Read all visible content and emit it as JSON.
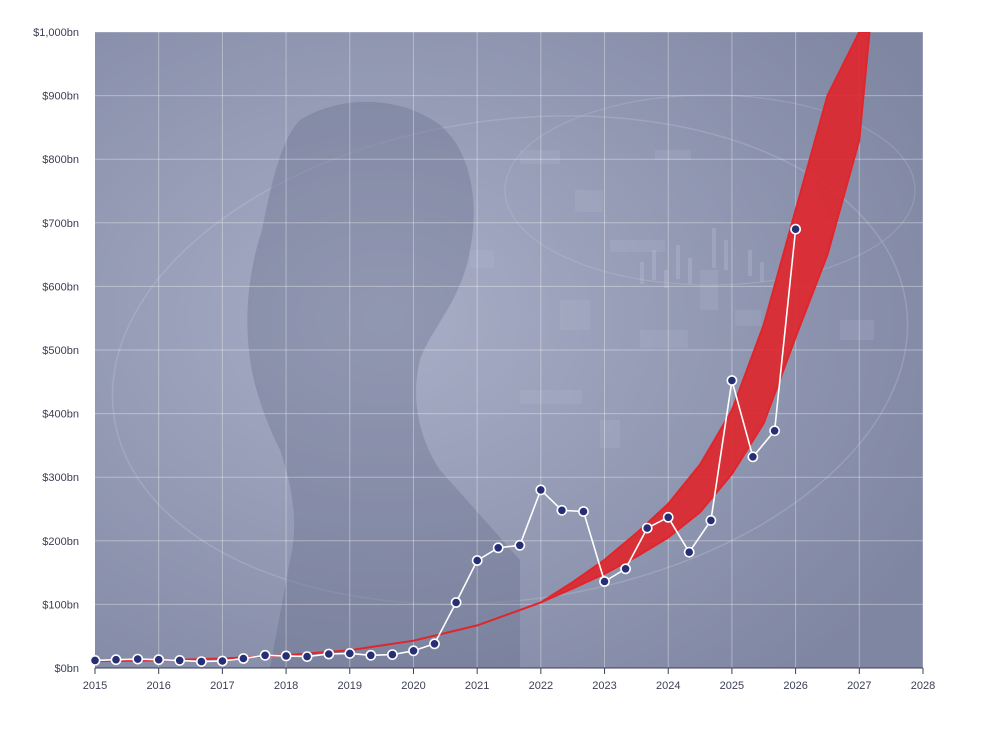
{
  "chart_data": {
    "type": "line",
    "title": "",
    "xlabel": "",
    "ylabel": "",
    "xlim": [
      2015,
      2028
    ],
    "ylim": [
      0,
      1000
    ],
    "x_ticks": [
      2015,
      2016,
      2017,
      2018,
      2019,
      2020,
      2021,
      2022,
      2023,
      2024,
      2025,
      2026,
      2027,
      2028
    ],
    "x_tick_labels": [
      "2015",
      "2016",
      "2017",
      "2018",
      "2019",
      "2020",
      "2021",
      "2022",
      "2023",
      "2024",
      "2025",
      "2026",
      "2027",
      "2028"
    ],
    "y_ticks": [
      0,
      100,
      200,
      300,
      400,
      500,
      600,
      700,
      800,
      900,
      1000
    ],
    "y_tick_labels": [
      "$0bn",
      "$100bn",
      "$200bn",
      "$300bn",
      "$400bn",
      "$500bn",
      "$600bn",
      "$700bn",
      "$800bn",
      "$900bn",
      "$1,000bn"
    ],
    "grid": true,
    "series": [
      {
        "x": [
          2015.0,
          2015.33,
          2015.67,
          2016.0,
          2016.33,
          2016.67,
          2017.0,
          2017.33,
          2017.67,
          2018.0,
          2018.33,
          2018.67,
          2019.0,
          2019.33,
          2019.67,
          2020.0,
          2020.33,
          2020.67,
          2021.0,
          2021.33,
          2021.67,
          2022.0,
          2022.33,
          2022.67,
          2023.0,
          2023.33,
          2023.67,
          2024.0,
          2024.33,
          2024.67,
          2025.0,
          2025.33,
          2025.67,
          2026.0
        ],
        "values": [
          12,
          13,
          14,
          13,
          12,
          10,
          11,
          15,
          20,
          19,
          18,
          22,
          23,
          20,
          21,
          27,
          38,
          103,
          169,
          189,
          193,
          280,
          248,
          246,
          136,
          156,
          220,
          237,
          182,
          232,
          452,
          332,
          373,
          690
        ]
      }
    ],
    "trend_band": {
      "x": [
        2015,
        2016,
        2017,
        2018,
        2019,
        2020,
        2021,
        2022,
        2022.5,
        2023,
        2023.5,
        2024,
        2024.5,
        2025,
        2025.5,
        2026,
        2026.5,
        2027,
        2027.16
      ],
      "lower": [
        11,
        12,
        15,
        20,
        28,
        43,
        67,
        103,
        125,
        148,
        175,
        205,
        245,
        305,
        385,
        520,
        650,
        830,
        1000
      ],
      "upper": [
        11,
        12,
        15,
        20,
        28,
        43,
        67,
        103,
        135,
        170,
        212,
        258,
        320,
        405,
        540,
        720,
        900,
        1000,
        1000
      ]
    },
    "colors": {
      "background": "#8990aa",
      "trend_band": "#e0252b",
      "line": "#ffffff",
      "marker_fill": "#262f75",
      "marker_stroke": "#ffffff"
    }
  }
}
